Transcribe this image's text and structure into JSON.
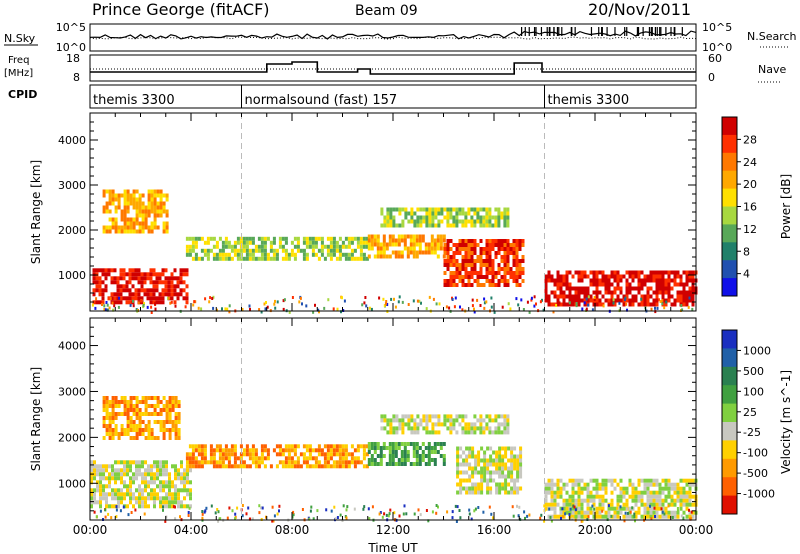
{
  "header": {
    "station": "Prince George (fitACF)",
    "beam": "Beam 09",
    "date": "20/Nov/2011"
  },
  "top_panels": {
    "nsky_label": "N.Sky",
    "nsky_ticks": [
      "10^5",
      "10^0"
    ],
    "nsearch_label": "N.Search",
    "nsearch_ticks": [
      "10^5",
      "10^0"
    ],
    "freq_label_1": "Freq",
    "freq_label_2": "[MHz]",
    "freq_ticks": [
      "18",
      "8"
    ],
    "nave_label": "Nave",
    "nave_ticks": [
      "60",
      "0"
    ],
    "cpid_label": "CPID",
    "cpid_segments": [
      {
        "label": "themis 3300",
        "start": 0,
        "end": 6
      },
      {
        "label": "normalsound (fast) 157",
        "start": 6,
        "end": 18
      },
      {
        "label": "themis 3300",
        "start": 18,
        "end": 24
      }
    ]
  },
  "power_colorbar": {
    "title": "Power [dB]",
    "ticks": [
      "28",
      "24",
      "20",
      "16",
      "12",
      "8",
      "4"
    ],
    "colors": [
      "#d00000",
      "#ff3000",
      "#ff7800",
      "#ffa800",
      "#ffe000",
      "#a8d840",
      "#58a858",
      "#20806a",
      "#2050b0",
      "#1010e8"
    ]
  },
  "velocity_colorbar": {
    "title": "Velocity [m s^-1]",
    "ticks": [
      "1000",
      "500",
      "100",
      "25",
      "-25",
      "-100",
      "-500",
      "-1000"
    ],
    "colors": [
      "#1a2fc0",
      "#2060a8",
      "#2a8050",
      "#40a040",
      "#80d040",
      "#c8c8c0",
      "#ffd000",
      "#ff9a00",
      "#ff6000",
      "#e01000"
    ]
  },
  "chart_data": [
    {
      "type": "heatmap",
      "title": "",
      "ylabel": "Slant Range [km]",
      "xlabel": "",
      "xlim": [
        0,
        24
      ],
      "ylim": [
        200,
        4600
      ],
      "yticks": [
        1000,
        2000,
        3000,
        4000
      ],
      "ytick_labels": [
        "1000",
        "2000",
        "3000",
        "4000"
      ],
      "colorbar": "Power [dB]",
      "features": [
        {
          "t0": 0.1,
          "t1": 3.8,
          "r0": 400,
          "r1": 1150,
          "value": "28"
        },
        {
          "t0": 0.5,
          "t1": 3.0,
          "r0": 2000,
          "r1": 2900,
          "value": "20"
        },
        {
          "t0": 3.8,
          "t1": 11.0,
          "r0": 1350,
          "r1": 1850,
          "value": "16"
        },
        {
          "t0": 11.0,
          "t1": 14.0,
          "r0": 1400,
          "r1": 1900,
          "value": "20"
        },
        {
          "t0": 11.5,
          "t1": 16.5,
          "r0": 2100,
          "r1": 2500,
          "value": "16"
        },
        {
          "t0": 14.0,
          "t1": 17.2,
          "r0": 800,
          "r1": 1800,
          "value": "24"
        },
        {
          "t0": 18.0,
          "t1": 24.0,
          "r0": 300,
          "r1": 1100,
          "value": "28"
        }
      ]
    },
    {
      "type": "heatmap",
      "title": "",
      "ylabel": "Slant Range [km]",
      "xlabel": "Time UT",
      "xlim": [
        0,
        24
      ],
      "ylim": [
        200,
        4600
      ],
      "yticks": [
        1000,
        2000,
        3000,
        4000
      ],
      "ytick_labels": [
        "1000",
        "2000",
        "3000",
        "4000"
      ],
      "xticks": [
        0,
        4,
        8,
        12,
        16,
        20,
        24
      ],
      "xtick_labels": [
        "00:00",
        "04:00",
        "08:00",
        "12:00",
        "16:00",
        "20:00",
        "00:00"
      ],
      "colorbar": "Velocity [m s^-1]",
      "features": [
        {
          "t0": 0.0,
          "t1": 4.0,
          "r0": 500,
          "r1": 1500,
          "value": "25"
        },
        {
          "t0": 0.5,
          "t1": 3.5,
          "r0": 2000,
          "r1": 2900,
          "value": "-100"
        },
        {
          "t0": 3.8,
          "t1": 11.0,
          "r0": 1350,
          "r1": 1850,
          "value": "-100"
        },
        {
          "t0": 11.0,
          "t1": 14.0,
          "r0": 1450,
          "r1": 1900,
          "value": "100"
        },
        {
          "t0": 11.5,
          "t1": 16.5,
          "r0": 2100,
          "r1": 2500,
          "value": "25"
        },
        {
          "t0": 14.5,
          "t1": 17.0,
          "r0": 800,
          "r1": 1800,
          "value": "25"
        },
        {
          "t0": 18.0,
          "t1": 24.0,
          "r0": 300,
          "r1": 1100,
          "value": "25"
        }
      ]
    }
  ]
}
